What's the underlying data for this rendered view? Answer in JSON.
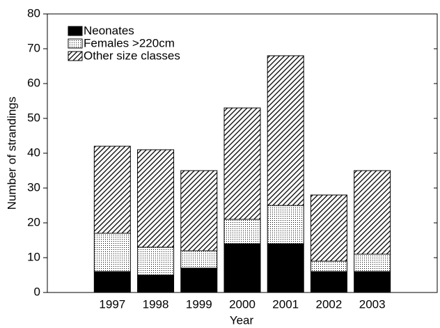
{
  "chart_data": {
    "type": "stacked_bar",
    "xlabel": "Year",
    "ylabel": "Number of strandings",
    "categories": [
      "1997",
      "1998",
      "1999",
      "2000",
      "2001",
      "2002",
      "2003"
    ],
    "series": [
      {
        "name": "Neonates",
        "color": "#000000",
        "pattern": "solid",
        "values": [
          6,
          5,
          7,
          14,
          14,
          6,
          6
        ]
      },
      {
        "name": "Females >220cm",
        "color": "#000000",
        "pattern": "dots",
        "values": [
          11,
          8,
          5,
          7,
          11,
          3,
          5
        ]
      },
      {
        "name": "Other size classes",
        "color": "#000000",
        "pattern": "hatch",
        "values": [
          25,
          28,
          23,
          32,
          43,
          19,
          24
        ]
      }
    ],
    "ylim": [
      0,
      80
    ],
    "yticks": [
      0,
      10,
      20,
      30,
      40,
      50,
      60,
      70,
      80
    ],
    "legend": "upper left"
  }
}
